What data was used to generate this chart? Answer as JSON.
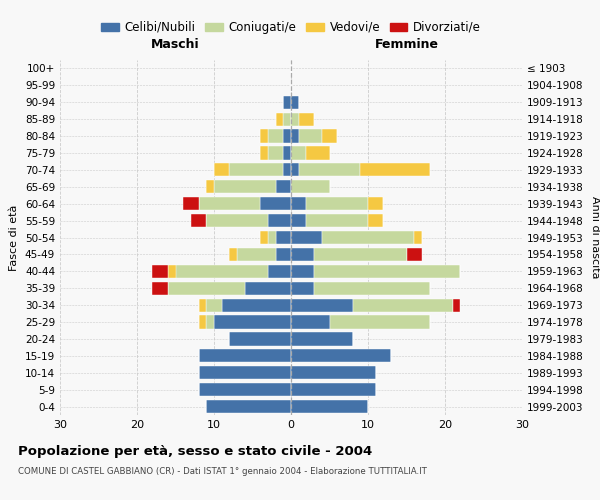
{
  "age_groups": [
    "0-4",
    "5-9",
    "10-14",
    "15-19",
    "20-24",
    "25-29",
    "30-34",
    "35-39",
    "40-44",
    "45-49",
    "50-54",
    "55-59",
    "60-64",
    "65-69",
    "70-74",
    "75-79",
    "80-84",
    "85-89",
    "90-94",
    "95-99",
    "100+"
  ],
  "birth_years": [
    "1999-2003",
    "1994-1998",
    "1989-1993",
    "1984-1988",
    "1979-1983",
    "1974-1978",
    "1969-1973",
    "1964-1968",
    "1959-1963",
    "1954-1958",
    "1949-1953",
    "1944-1948",
    "1939-1943",
    "1934-1938",
    "1929-1933",
    "1924-1928",
    "1919-1923",
    "1914-1918",
    "1909-1913",
    "1904-1908",
    "≤ 1903"
  ],
  "colors": {
    "celibi": "#4472a8",
    "coniugati": "#c5d89e",
    "vedovi": "#f5c842",
    "divorziati": "#cc1111"
  },
  "maschi": {
    "celibi": [
      11,
      12,
      12,
      12,
      8,
      10,
      9,
      6,
      3,
      2,
      2,
      3,
      4,
      2,
      1,
      1,
      1,
      0,
      1,
      0,
      0
    ],
    "coniugati": [
      0,
      0,
      0,
      0,
      0,
      1,
      2,
      10,
      12,
      5,
      1,
      8,
      8,
      8,
      7,
      2,
      2,
      1,
      0,
      0,
      0
    ],
    "vedovi": [
      0,
      0,
      0,
      0,
      0,
      1,
      1,
      0,
      1,
      1,
      1,
      0,
      0,
      1,
      2,
      1,
      1,
      1,
      0,
      0,
      0
    ],
    "divorziati": [
      0,
      0,
      0,
      0,
      0,
      0,
      0,
      2,
      2,
      0,
      0,
      2,
      2,
      0,
      0,
      0,
      0,
      0,
      0,
      0,
      0
    ]
  },
  "femmine": {
    "celibi": [
      10,
      11,
      11,
      13,
      8,
      5,
      8,
      3,
      3,
      3,
      4,
      2,
      2,
      0,
      1,
      0,
      1,
      0,
      1,
      0,
      0
    ],
    "coniugati": [
      0,
      0,
      0,
      0,
      0,
      13,
      13,
      15,
      19,
      12,
      12,
      8,
      8,
      5,
      8,
      2,
      3,
      1,
      0,
      0,
      0
    ],
    "vedovi": [
      0,
      0,
      0,
      0,
      0,
      0,
      0,
      0,
      0,
      0,
      1,
      2,
      2,
      0,
      9,
      3,
      2,
      2,
      0,
      0,
      0
    ],
    "divorziati": [
      0,
      0,
      0,
      0,
      0,
      0,
      1,
      0,
      0,
      2,
      0,
      0,
      0,
      0,
      0,
      0,
      0,
      0,
      0,
      0,
      0
    ]
  },
  "xlim": 30,
  "title": "Popolazione per età, sesso e stato civile - 2004",
  "subtitle": "COMUNE DI CASTEL GABBIANO (CR) - Dati ISTAT 1° gennaio 2004 - Elaborazione TUTTITALIA.IT",
  "legend_labels": [
    "Celibi/Nubili",
    "Coniugati/e",
    "Vedovi/e",
    "Divorziati/e"
  ],
  "ylabel_left": "Fasce di età",
  "ylabel_right": "Anni di nascita",
  "xlabel_left": "Maschi",
  "xlabel_right": "Femmine",
  "bg_color": "#f8f8f8",
  "grid_color": "#cccccc"
}
